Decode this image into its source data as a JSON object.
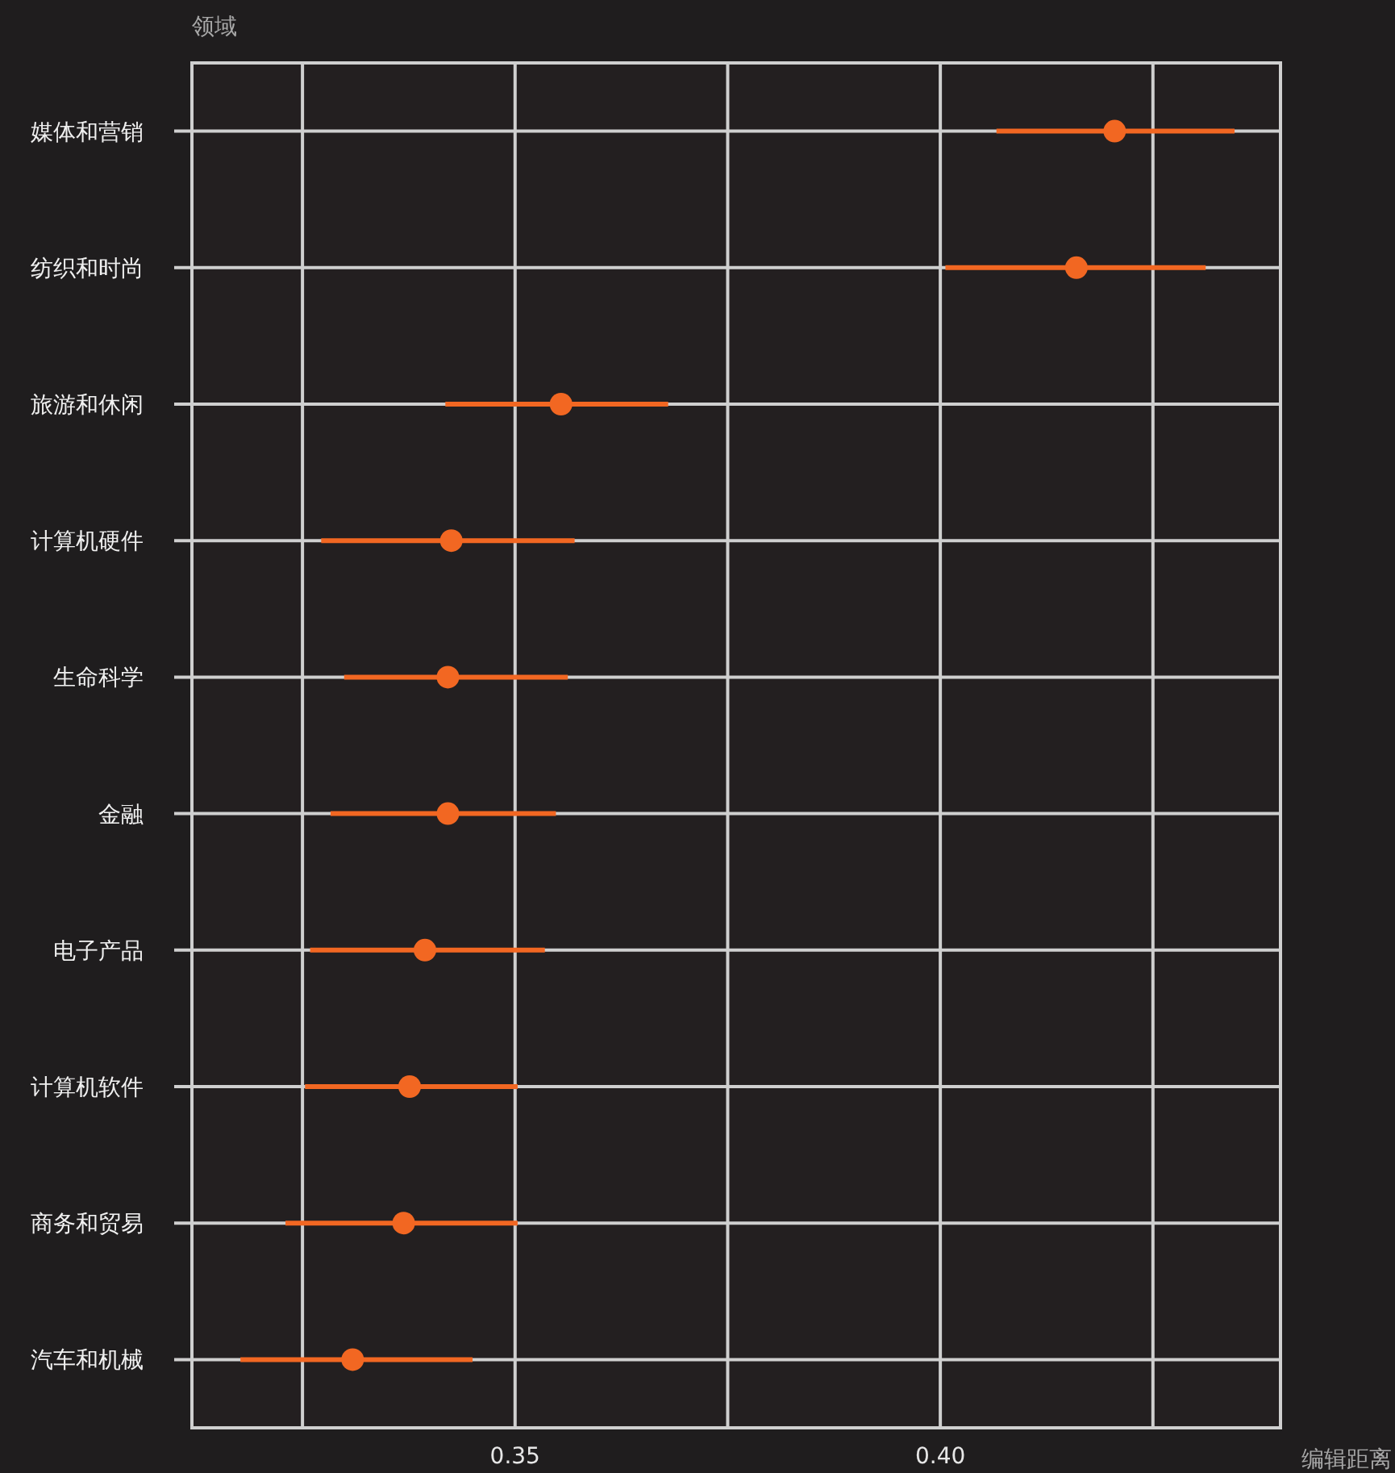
{
  "chart_data": {
    "type": "scatter",
    "orientation": "horizontal",
    "ylabel": "领域",
    "xlabel": "编辑距离",
    "categories": [
      "媒体和营销",
      "纺织和时尚",
      "旅游和休闲",
      "计算机硬件",
      "生命科学",
      "金融",
      "电子产品",
      "计算机软件",
      "商务和贸易",
      "汽车和机械"
    ],
    "series": [
      {
        "color": "#f26722",
        "values": [
          0.4205,
          0.416,
          0.3554,
          0.3425,
          0.3421,
          0.3421,
          0.3394,
          0.3376,
          0.3369,
          0.3309
        ],
        "errors": [
          [
            0.4066,
            0.4346
          ],
          [
            0.4006,
            0.4312
          ],
          [
            0.3418,
            0.368
          ],
          [
            0.3272,
            0.357
          ],
          [
            0.3299,
            0.3562
          ],
          [
            0.3283,
            0.3548
          ],
          [
            0.3259,
            0.3535
          ],
          [
            0.3253,
            0.3503
          ],
          [
            0.323,
            0.3503
          ],
          [
            0.3177,
            0.345
          ]
        ]
      }
    ],
    "xlim": [
      0.312,
      0.44
    ],
    "xticks": [
      {
        "value": 0.325,
        "label": null
      },
      0.35,
      {
        "value": 0.375,
        "label": null
      },
      {
        "value": 0.4,
        "label": "0.40"
      },
      {
        "value": 0.425,
        "label": null
      }
    ],
    "grid": true,
    "marker": "circle"
  }
}
